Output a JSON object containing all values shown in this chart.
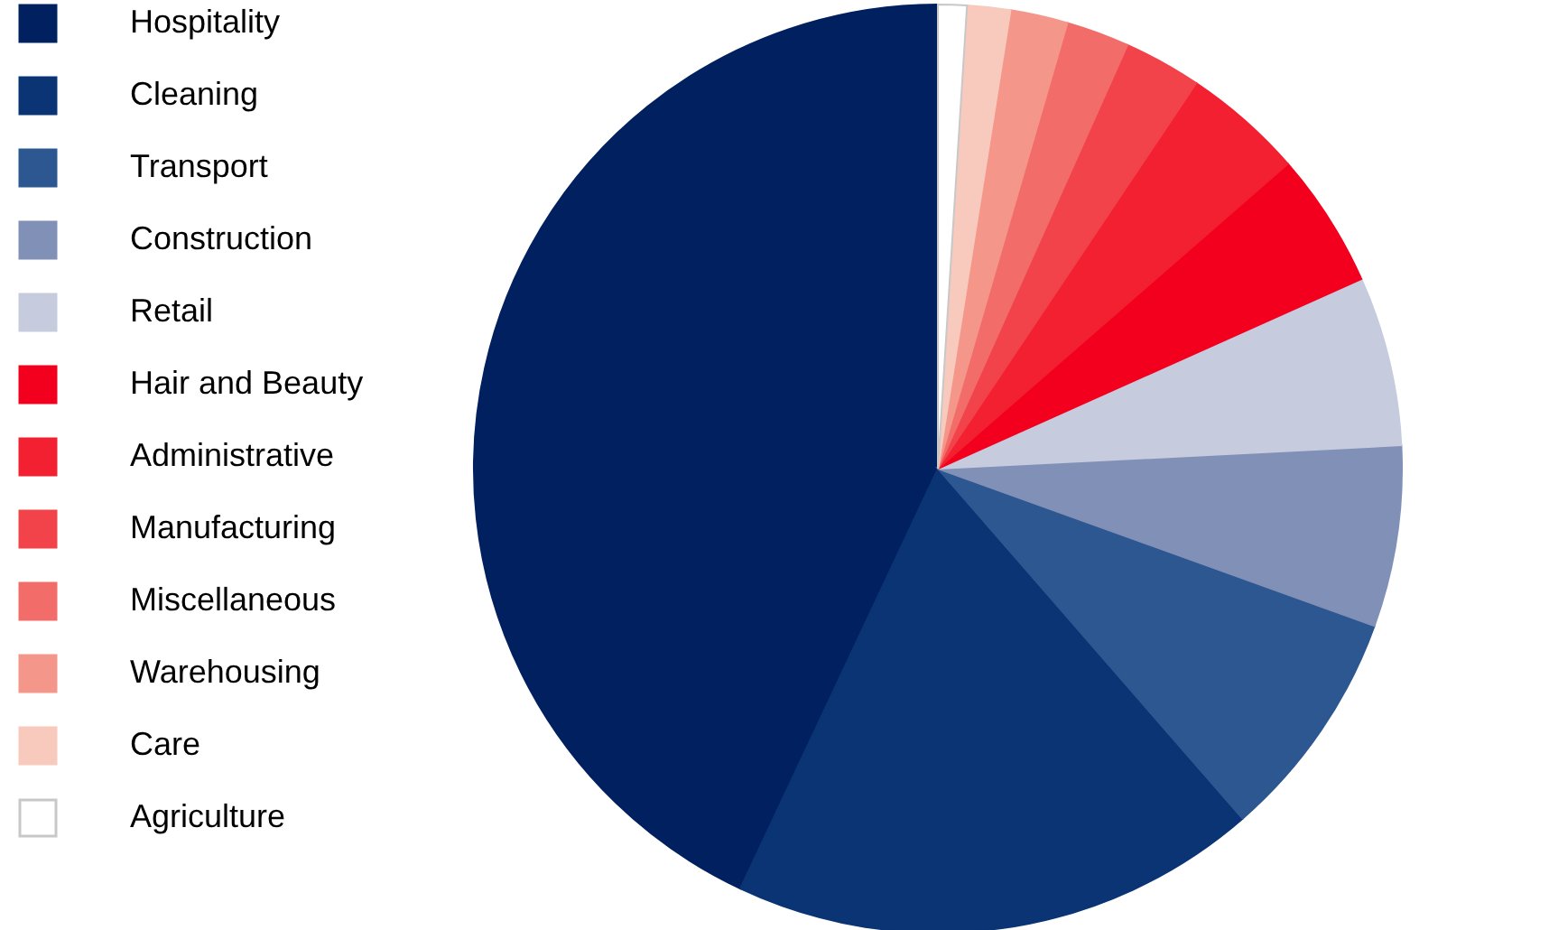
{
  "chart_data": {
    "type": "pie",
    "categories": [
      "Hospitality",
      "Cleaning",
      "Transport",
      "Construction",
      "Retail",
      "Hair and Beauty",
      "Administrative",
      "Manufacturing",
      "Miscellaneous",
      "Warehousing",
      "Care",
      "Agriculture"
    ],
    "values": [
      43.0,
      18.4,
      8.1,
      6.3,
      5.9,
      4.7,
      4.2,
      2.7,
      2.2,
      2.0,
      1.5,
      1.0
    ],
    "colors": [
      "#00205f",
      "#0a3474",
      "#2d5790",
      "#8190b6",
      "#c6cbde",
      "#f2001e",
      "#f22030",
      "#f2424a",
      "#f26c6a",
      "#f5968b",
      "#f8c9bd",
      "#ffffff"
    ],
    "legend": "left"
  }
}
